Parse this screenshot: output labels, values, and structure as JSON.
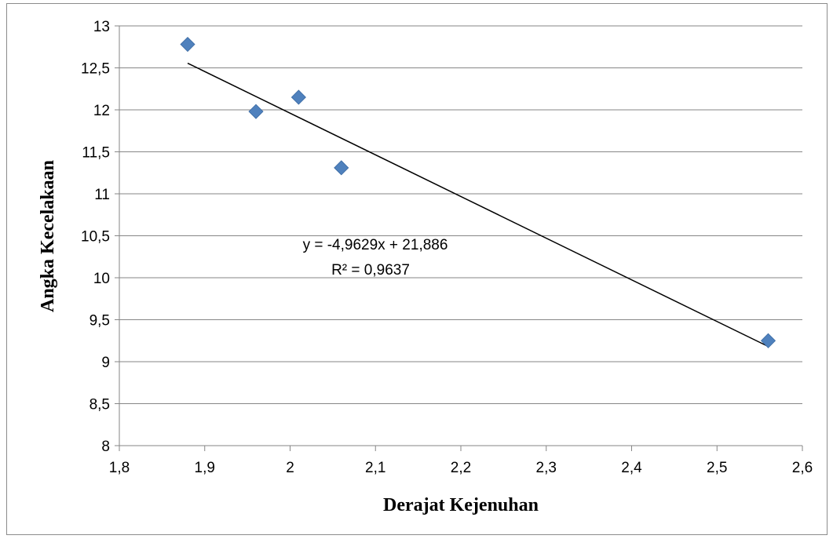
{
  "chart_data": {
    "type": "scatter",
    "xlabel": "Derajat Kejenuhan",
    "ylabel": "Angka Kecelakaan",
    "xlim": [
      1.8,
      2.6
    ],
    "ylim": [
      8,
      13
    ],
    "x_ticks": [
      "1,8",
      "1,9",
      "2",
      "2,1",
      "2,2",
      "2,3",
      "2,4",
      "2,5",
      "2,6"
    ],
    "y_ticks": [
      "8",
      "8,5",
      "9",
      "9,5",
      "10",
      "10,5",
      "11",
      "11,5",
      "12",
      "12,5",
      "13"
    ],
    "grid": "horizontal",
    "series": [
      {
        "points": [
          {
            "x": 1.88,
            "y": 12.78
          },
          {
            "x": 1.96,
            "y": 11.98
          },
          {
            "x": 2.01,
            "y": 12.15
          },
          {
            "x": 2.06,
            "y": 11.31
          },
          {
            "x": 2.56,
            "y": 9.25
          }
        ],
        "marker": "diamond",
        "color": "#4f81bd"
      }
    ],
    "trendline": {
      "type": "linear",
      "slope": -4.9629,
      "intercept": 21.886,
      "x_range": [
        1.88,
        2.56
      ],
      "color": "#000000",
      "equation": "y = -4,9629x + 21,886",
      "r_squared": "R² = 0,9637"
    }
  }
}
